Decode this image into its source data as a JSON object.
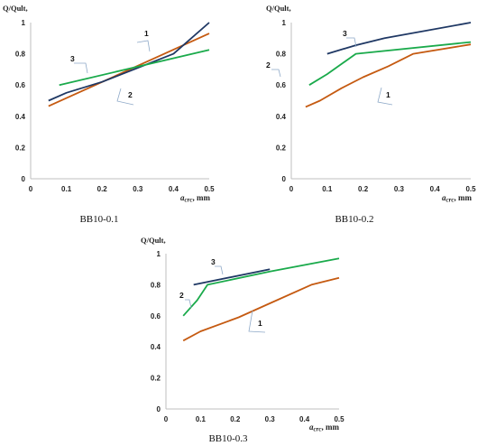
{
  "chart_data": [
    {
      "type": "line",
      "caption": "BB10-0.1",
      "ylabel": "Q/Qult,",
      "xlabel_main": "a",
      "xlabel_sub": "crc",
      "xlabel_unit": ", mm",
      "xlim": [
        0,
        0.5
      ],
      "ylim": [
        0,
        1
      ],
      "xticks": [
        "0",
        "0.1",
        "0.2",
        "0.3",
        "0.4",
        "0.5"
      ],
      "yticks": [
        "0",
        "0.2",
        "0.4",
        "0.6",
        "0.8",
        "1"
      ],
      "grid": false,
      "series": [
        {
          "name": "1",
          "color": "#C55A11",
          "x": [
            0.05,
            0.5
          ],
          "y": [
            0.465,
            0.93
          ]
        },
        {
          "name": "2",
          "color": "#1F3864",
          "x": [
            0.05,
            0.1,
            0.2,
            0.3,
            0.4,
            0.5
          ],
          "y": [
            0.5,
            0.55,
            0.62,
            0.71,
            0.8,
            1.0
          ]
        },
        {
          "name": "3",
          "color": "#1AAA4B",
          "x": [
            0.08,
            0.5
          ],
          "y": [
            0.6,
            0.825
          ]
        }
      ]
    },
    {
      "type": "line",
      "caption": "BB10-0.2",
      "ylabel": "Q/Qult,",
      "xlabel_main": "a",
      "xlabel_sub": "crc",
      "xlabel_unit": ", mm",
      "xlim": [
        0,
        0.5
      ],
      "ylim": [
        0,
        1
      ],
      "xticks": [
        "0",
        "0.1",
        "0.2",
        "0.3",
        "0.4",
        "0.5"
      ],
      "yticks": [
        "0",
        "0.2",
        "0.4",
        "0.6",
        "0.8",
        "1"
      ],
      "grid": false,
      "series": [
        {
          "name": "1",
          "color": "#C55A11",
          "x": [
            0.04,
            0.08,
            0.14,
            0.2,
            0.27,
            0.34,
            0.5
          ],
          "y": [
            0.46,
            0.5,
            0.58,
            0.65,
            0.72,
            0.8,
            0.86
          ]
        },
        {
          "name": "2",
          "color": "#1AAA4B",
          "x": [
            0.05,
            0.1,
            0.18,
            0.5
          ],
          "y": [
            0.6,
            0.67,
            0.8,
            0.875
          ]
        },
        {
          "name": "3",
          "color": "#1F3864",
          "x": [
            0.1,
            0.18,
            0.26,
            0.5
          ],
          "y": [
            0.8,
            0.855,
            0.9,
            1.0
          ]
        }
      ]
    },
    {
      "type": "line",
      "caption": "BB10-0.3",
      "ylabel": "Q/Qult,",
      "xlabel_main": "a",
      "xlabel_sub": "crc",
      "xlabel_unit": ", mm",
      "xlim": [
        0,
        0.5
      ],
      "ylim": [
        0,
        1
      ],
      "xticks": [
        "0",
        "0.1",
        "0.2",
        "0.3",
        "0.4",
        "0.5"
      ],
      "yticks": [
        "0",
        "0.2",
        "0.4",
        "0.6",
        "0.8",
        "1"
      ],
      "grid": false,
      "series": [
        {
          "name": "1",
          "color": "#C55A11",
          "x": [
            0.05,
            0.1,
            0.21,
            0.3,
            0.42,
            0.5
          ],
          "y": [
            0.44,
            0.5,
            0.59,
            0.68,
            0.8,
            0.845
          ]
        },
        {
          "name": "2",
          "color": "#1AAA4B",
          "x": [
            0.05,
            0.09,
            0.12,
            0.3,
            0.5
          ],
          "y": [
            0.6,
            0.7,
            0.8,
            0.885,
            0.97
          ]
        },
        {
          "name": "3",
          "color": "#1F3864",
          "x": [
            0.08,
            0.3
          ],
          "y": [
            0.8,
            0.9
          ]
        }
      ]
    }
  ]
}
